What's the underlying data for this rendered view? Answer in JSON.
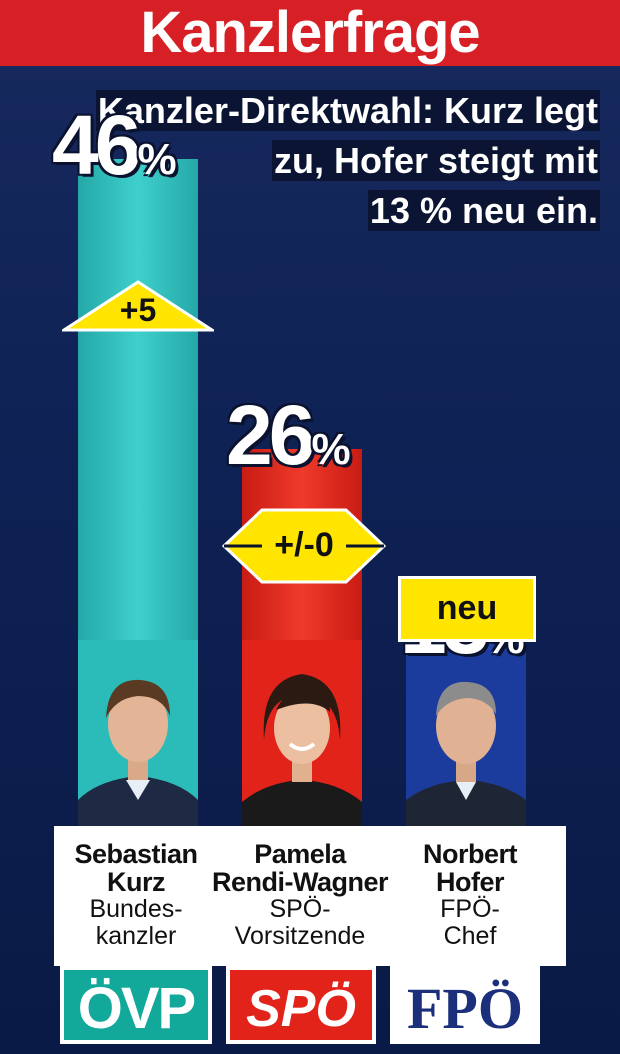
{
  "title": "Kanzlerfrage",
  "subtitle_lines": [
    "Kanzler-Direktwahl: Kurz legt",
    "zu, Hofer steigt mit",
    "13 % neu ein."
  ],
  "colors": {
    "header_red": "#d71f26",
    "oevp": "#2bbbb9",
    "spoe": "#e2231a",
    "fpoe": "#1b3c9c",
    "badge_yellow": "#ffe500"
  },
  "chart_data": {
    "type": "bar",
    "title": "Kanzlerfrage",
    "categories": [
      "Sebastian Kurz",
      "Pamela Rendi-Wagner",
      "Norbert Hofer"
    ],
    "values": [
      46,
      26,
      13
    ],
    "unit": "%",
    "changes": [
      "+5",
      "+/-0",
      "neu"
    ],
    "value_labels": [
      "46",
      "26",
      "13"
    ]
  },
  "candidates": [
    {
      "first": "Sebastian",
      "last": "Kurz",
      "role1": "Bundes-",
      "role2": "kanzler",
      "party": "ÖVP"
    },
    {
      "first": "Pamela",
      "last": "Rendi-Wagner",
      "role1": "SPÖ-",
      "role2": "Vorsitzende",
      "party": "SPÖ"
    },
    {
      "first": "Norbert",
      "last": "Hofer",
      "role1": "FPÖ-",
      "role2": "Chef",
      "party": "FPÖ"
    }
  ],
  "percent_sign": "%"
}
